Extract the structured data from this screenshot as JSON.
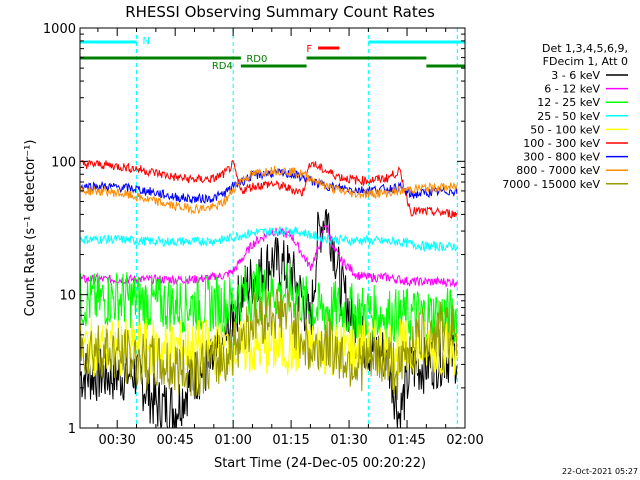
{
  "chart_data": {
    "type": "line",
    "title": "RHESSI Observing Summary Count Rates",
    "xlabel": "Start Time (24-Dec-05 00:20:22)",
    "ylabel": "Count Rate (s⁻¹ detector⁻¹)",
    "yscale": "log",
    "ylim": [
      1,
      1000
    ],
    "xlim_minutes": [
      20.37,
      120
    ],
    "x_tick_labels": [
      "00:30",
      "00:45",
      "01:00",
      "01:15",
      "01:30",
      "01:45",
      "02:00"
    ],
    "y_tick_labels": [
      "1",
      "10",
      "100",
      "1000"
    ],
    "legend_header": [
      "Det 1,3,4,5,6,9,",
      "FDecim 1, Att 0"
    ],
    "timestamp": "22-Oct-2021 05:27",
    "x_minutes": [
      25,
      30,
      35,
      40,
      45,
      50,
      55,
      58,
      60,
      62,
      65,
      70,
      75,
      78,
      80,
      82,
      84,
      86,
      88,
      90,
      92,
      95,
      100,
      103,
      106,
      110,
      115,
      118
    ],
    "series": [
      {
        "name": "3 - 6 keV",
        "color": "#000000",
        "values": [
          2.5,
          2.5,
          2.6,
          1.5,
          1.4,
          2.5,
          3,
          4.5,
          7,
          10,
          13,
          18,
          15,
          9,
          6,
          28,
          42,
          24,
          11,
          8,
          5,
          4,
          3.5,
          1.2,
          2.8,
          3,
          3.5,
          3.5
        ]
      },
      {
        "name": "6 - 12 keV",
        "color": "#ff00ff",
        "values": [
          13,
          13,
          13,
          13,
          13,
          13,
          13.5,
          14,
          15,
          18,
          24,
          30,
          28,
          20,
          16,
          22,
          35,
          22,
          18,
          16,
          14,
          13.5,
          13.5,
          13,
          12.5,
          12.5,
          12.5,
          12.5
        ]
      },
      {
        "name": "12 - 25 keV",
        "color": "#00ff00",
        "values": [
          9,
          9.5,
          9,
          8.5,
          8.5,
          8.5,
          8.5,
          8.5,
          9,
          10,
          10.5,
          10.5,
          10.5,
          9,
          8,
          7.5,
          8,
          7.8,
          7.8,
          7.5,
          7.5,
          7.3,
          7,
          6.8,
          7,
          7,
          7,
          7
        ]
      },
      {
        "name": "25 - 50 keV",
        "color": "#00ffff",
        "values": [
          26,
          26,
          25.5,
          25,
          25,
          25,
          25.5,
          26,
          27,
          28,
          29,
          30,
          30,
          29.5,
          28,
          27,
          26.5,
          26,
          26,
          25.5,
          25.5,
          25.5,
          25,
          25,
          24,
          23,
          23,
          23
        ]
      },
      {
        "name": "50 - 100 keV",
        "color": "#ffff00",
        "values": [
          4,
          4,
          4,
          4,
          4,
          4,
          4,
          4,
          4,
          4,
          4,
          4,
          4,
          4,
          4,
          4,
          4,
          4,
          4,
          4,
          4,
          4,
          4,
          4,
          4,
          4,
          4,
          4
        ]
      },
      {
        "name": "100 - 300 keV",
        "color": "#ff0000",
        "values": [
          95,
          92,
          88,
          82,
          76,
          73,
          74,
          82,
          95,
          60,
          65,
          68,
          62,
          58,
          100,
          90,
          85,
          80,
          76,
          74,
          72,
          72,
          75,
          85,
          42,
          42,
          41,
          40
        ]
      },
      {
        "name": "300 - 800 keV",
        "color": "#0000ff",
        "values": [
          65,
          64,
          62,
          58,
          54,
          52,
          53,
          58,
          65,
          70,
          78,
          82,
          80,
          76,
          72,
          68,
          66,
          64,
          63,
          62,
          61,
          61,
          62,
          64,
          56,
          58,
          60,
          60
        ]
      },
      {
        "name": "800 - 7000 keV",
        "color": "#ff8c00",
        "values": [
          60,
          58,
          54,
          50,
          46,
          44,
          45,
          50,
          62,
          72,
          80,
          86,
          84,
          80,
          75,
          70,
          66,
          62,
          60,
          58,
          57,
          57,
          58,
          60,
          62,
          63,
          64,
          64
        ]
      },
      {
        "name": "7000 - 15000 keV",
        "color": "#999900",
        "values": [
          4,
          3.6,
          3.2,
          3,
          2.8,
          2.8,
          3,
          3.4,
          4,
          5,
          6.5,
          7.5,
          7,
          5,
          3.5,
          4,
          4.5,
          4,
          3.5,
          3.2,
          3,
          3.2,
          3.3,
          2.5,
          4.5,
          5,
          5.5,
          5.5
        ]
      }
    ],
    "state_bars": [
      {
        "label": "N",
        "color": "#00ffff",
        "segments": [
          [
            20.37,
            35
          ],
          [
            95,
            120
          ]
        ]
      },
      {
        "label": "RD0",
        "color": "#008000",
        "segments": [
          [
            20.37,
            62
          ],
          [
            79,
            110
          ]
        ]
      },
      {
        "label": "RD4",
        "color": "#008000",
        "segments": [
          [
            62,
            79
          ],
          [
            110,
            120
          ]
        ]
      },
      {
        "label": "F",
        "color": "#ff0000",
        "segments": [
          [
            82,
            87.5
          ]
        ]
      }
    ],
    "vertical_markers_minutes": [
      20.37,
      35,
      60,
      95,
      118
    ],
    "grid": false
  }
}
